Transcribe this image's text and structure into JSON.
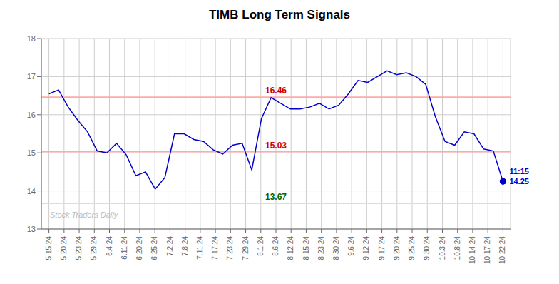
{
  "chart_data": {
    "type": "line",
    "title": "TIMB Long Term Signals",
    "watermark": {
      "text": "Stock Traders Daily",
      "color": "#bbbbbb"
    },
    "grid": true,
    "series": [
      {
        "color": "#0000cc",
        "x": [
          0,
          0.638298,
          1.276596,
          1.914894,
          2.553191,
          3.191489,
          3.829787,
          4.468085,
          5.106383,
          5.744681,
          6.382979,
          7.021277,
          7.659574,
          8.297872,
          8.93617,
          9.574468,
          10.212766,
          10.851064,
          11.489362,
          12.12766,
          12.765957,
          13.404255,
          14.042553,
          14.680851,
          15.319149,
          15.957447,
          16.595745,
          17.234043,
          17.87234,
          18.510638,
          19.148936,
          19.787234,
          20.425532,
          21.06383,
          21.702128,
          22.340426,
          22.978723,
          23.617021,
          24.255319,
          24.893617,
          25.531915,
          26.170213,
          26.808511,
          27.446809,
          28.085106,
          28.723404,
          29.361702,
          30
        ],
        "values": [
          16.55,
          16.65,
          16.2,
          15.85,
          15.55,
          15.05,
          15.0,
          15.25,
          14.95,
          14.4,
          14.5,
          14.05,
          14.35,
          15.5,
          15.5,
          15.35,
          15.3,
          15.08,
          14.97,
          15.2,
          15.25,
          14.55,
          15.9,
          16.45,
          16.3,
          16.15,
          16.15,
          16.2,
          16.3,
          16.15,
          16.25,
          16.55,
          16.9,
          16.85,
          17.0,
          17.15,
          17.05,
          17.1,
          17.0,
          16.8,
          15.95,
          15.3,
          15.2,
          15.55,
          15.5,
          15.1,
          15.05,
          14.25
        ]
      }
    ],
    "xlim": [
      -0.5,
      30.5
    ],
    "xticks": [
      {
        "value": 0,
        "label": "5.15.24"
      },
      {
        "value": 1,
        "label": "5.20.24"
      },
      {
        "value": 2,
        "label": "5.23.24"
      },
      {
        "value": 3,
        "label": "5.29.24"
      },
      {
        "value": 4,
        "label": "6.4.24"
      },
      {
        "value": 5,
        "label": "6.11.24"
      },
      {
        "value": 6,
        "label": "6.20.24"
      },
      {
        "value": 7,
        "label": "6.25.24"
      },
      {
        "value": 8,
        "label": "7.2.24"
      },
      {
        "value": 9,
        "label": "7.8.24"
      },
      {
        "value": 10,
        "label": "7.11.24"
      },
      {
        "value": 11,
        "label": "7.17.24"
      },
      {
        "value": 12,
        "label": "7.23.24"
      },
      {
        "value": 13,
        "label": "7.29.24"
      },
      {
        "value": 14,
        "label": "8.1.24"
      },
      {
        "value": 15,
        "label": "8.6.24"
      },
      {
        "value": 16,
        "label": "8.12.24"
      },
      {
        "value": 17,
        "label": "8.15.24"
      },
      {
        "value": 18,
        "label": "8.23.24"
      },
      {
        "value": 19,
        "label": "8.30.24"
      },
      {
        "value": 20,
        "label": "9.6.24"
      },
      {
        "value": 21,
        "label": "9.12.24"
      },
      {
        "value": 22,
        "label": "9.17.24"
      },
      {
        "value": 23,
        "label": "9.20.24"
      },
      {
        "value": 24,
        "label": "9.25.24"
      },
      {
        "value": 25,
        "label": "9.30.24"
      },
      {
        "value": 26,
        "label": "10.3.24"
      },
      {
        "value": 27,
        "label": "10.8.24"
      },
      {
        "value": 28,
        "label": "10.14.24"
      },
      {
        "value": 29,
        "label": "10.17.24"
      },
      {
        "value": 30,
        "label": "10.22.24"
      }
    ],
    "ylim": [
      13.0,
      18.0
    ],
    "yticks": [
      13,
      14,
      15,
      16,
      17,
      18
    ],
    "hlines": [
      {
        "y": 16.46,
        "color": "#ffaaaa",
        "text": "16.46",
        "text_color": "#cc0000"
      },
      {
        "y": 15.03,
        "color": "#ffaaaa",
        "text": "15.03",
        "text_color": "#cc0000"
      },
      {
        "y": 13.67,
        "color": "#aaffaa",
        "text": "13.67",
        "text_color": "#006600"
      }
    ],
    "annotations": [
      {
        "text": "11:15",
        "x": 30,
        "y": 14.25,
        "color": "#0000cc"
      },
      {
        "text": "14.25",
        "x": 30,
        "y": 14.25,
        "color": "#0000cc"
      }
    ]
  }
}
